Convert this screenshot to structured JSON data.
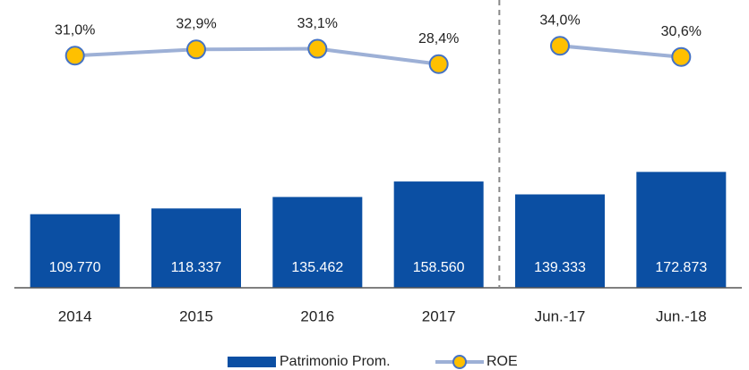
{
  "chart_data": {
    "type": "bar",
    "categories": [
      "2014",
      "2015",
      "2016",
      "2017",
      "Jun.-17",
      "Jun.-18"
    ],
    "series": [
      {
        "name": "Patrimonio Prom.",
        "type": "bar",
        "color": "#0b4fa3",
        "values": [
          109770,
          118337,
          135462,
          158560,
          139333,
          172873
        ],
        "value_labels": [
          "109.770",
          "118.337",
          "135.462",
          "158.560",
          "139.333",
          "172.873"
        ]
      },
      {
        "name": "ROE",
        "type": "line",
        "axis": "y2",
        "color": "#9db0d6",
        "marker_color": "#ffc000",
        "values": [
          31.0,
          32.9,
          33.1,
          28.4,
          34.0,
          30.6
        ],
        "value_labels": [
          "31,0%",
          "32,9%",
          "33,1%",
          "28,4%",
          "34,0%",
          "30,6%"
        ]
      }
    ],
    "ylim": [
      0,
      400000
    ],
    "y2lim": [
      -40,
      42
    ],
    "divider_after": "2017",
    "legend": "bottom"
  }
}
